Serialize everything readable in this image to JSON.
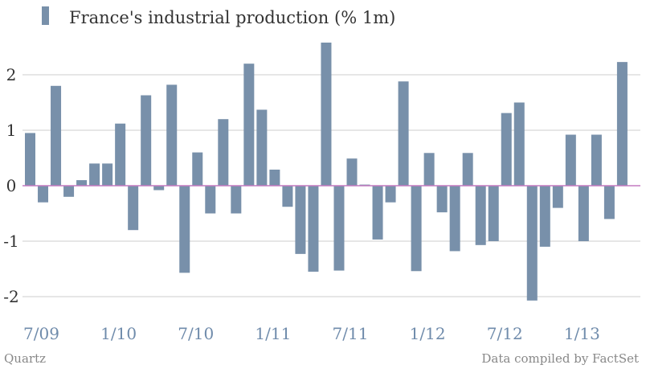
{
  "chart_data": {
    "type": "bar",
    "legend": "France's industrial production (% 1m)",
    "legend_position": "top-left",
    "grid": true,
    "colors": {
      "bar": "#7890aa",
      "grid": "#cccccc",
      "zero_line": "#c47ac0",
      "x_tick_text": "#6f8bab",
      "y_tick_text": "#333333",
      "footer_text": "#888888"
    },
    "ylim": [
      -2.2,
      2.6
    ],
    "yticks": [
      2,
      1,
      0,
      -1,
      -2
    ],
    "ytick_labels": [
      "2",
      "1",
      "0",
      "-1",
      "-2"
    ],
    "xtick_labels": [
      "7/09",
      "1/10",
      "7/10",
      "1/11",
      "7/11",
      "1/12",
      "7/12",
      "1/13"
    ],
    "xtick_bar_index": [
      0,
      6,
      12,
      18,
      24,
      30,
      36,
      42
    ],
    "values": [
      0.95,
      -0.3,
      1.8,
      -0.2,
      0.1,
      0.4,
      0.4,
      1.12,
      -0.8,
      1.63,
      -0.08,
      1.82,
      -1.57,
      0.6,
      -0.5,
      1.2,
      -0.5,
      2.2,
      1.37,
      0.29,
      -0.38,
      -1.23,
      -1.55,
      2.58,
      -1.53,
      0.49,
      0.02,
      -0.97,
      -0.3,
      1.88,
      -1.54,
      0.59,
      -0.48,
      -1.18,
      0.59,
      -1.07,
      -1.0,
      1.31,
      1.5,
      -2.07,
      -1.1,
      -0.4,
      0.92,
      -1.0,
      0.92,
      -0.6,
      2.23
    ]
  },
  "footer": {
    "source_left": "Quartz",
    "source_right": "Data compiled by FactSet"
  }
}
